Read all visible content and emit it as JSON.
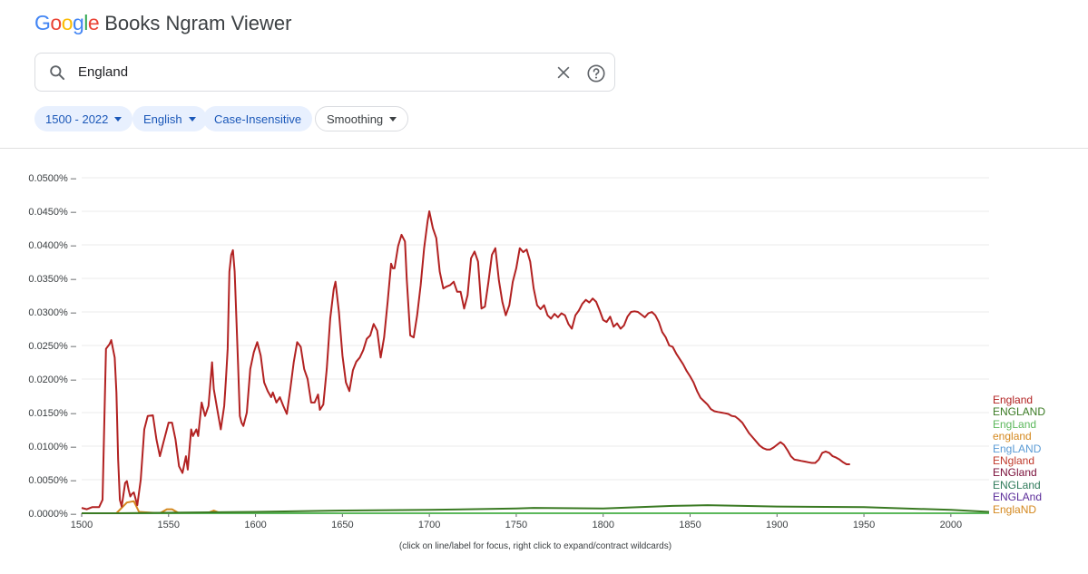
{
  "header": {
    "logo_text": "Google",
    "product": "Books Ngram Viewer",
    "logo_colors": [
      "#4285f4",
      "#ea4335",
      "#fbbc05",
      "#4285f4",
      "#34a853",
      "#ea4335"
    ]
  },
  "search": {
    "query": "England",
    "icons": {
      "search": "search-icon",
      "clear": "close-icon",
      "help": "help-icon"
    }
  },
  "filters": {
    "year_range": "1500 - 2022",
    "language": "English",
    "case": "Case-Insensitive",
    "smoothing": "Smoothing"
  },
  "footnote": "(click on line/label for focus, right click to expand/contract wildcards)",
  "chart_data": {
    "type": "line",
    "x_range": [
      1500,
      2022
    ],
    "y_range": [
      0,
      0.05
    ],
    "y_unit": "%",
    "x_ticks": [
      "1500",
      "1550",
      "1600",
      "1650",
      "1700",
      "1750",
      "1800",
      "1850",
      "1900",
      "1950",
      "2000"
    ],
    "y_ticks": [
      "0.0000%",
      "0.0050%",
      "0.0100%",
      "0.0150%",
      "0.0200%",
      "0.0250%",
      "0.0300%",
      "0.0350%",
      "0.0400%",
      "0.0450%",
      "0.0500%"
    ],
    "grid": "horizontal",
    "legend_position": "right",
    "series": [
      {
        "name": "England",
        "color": "#b22222",
        "points": [
          [
            1500,
            0.0008
          ],
          [
            1503,
            0.0006
          ],
          [
            1506,
            0.0009
          ],
          [
            1510,
            0.0009
          ],
          [
            1512,
            0.002
          ],
          [
            1514,
            0.0245
          ],
          [
            1516,
            0.0252
          ],
          [
            1517,
            0.0258
          ],
          [
            1519,
            0.0232
          ],
          [
            1520,
            0.018
          ],
          [
            1521,
            0.008
          ],
          [
            1522,
            0.002
          ],
          [
            1523,
            0.001
          ],
          [
            1525,
            0.0045
          ],
          [
            1526,
            0.0048
          ],
          [
            1527,
            0.0035
          ],
          [
            1528,
            0.0025
          ],
          [
            1529,
            0.0029
          ],
          [
            1530,
            0.0031
          ],
          [
            1532,
            0.0012
          ],
          [
            1534,
            0.005
          ],
          [
            1536,
            0.0125
          ],
          [
            1538,
            0.0145
          ],
          [
            1541,
            0.0146
          ],
          [
            1543,
            0.011
          ],
          [
            1545,
            0.0085
          ],
          [
            1547,
            0.0105
          ],
          [
            1550,
            0.0135
          ],
          [
            1552,
            0.0135
          ],
          [
            1554,
            0.011
          ],
          [
            1556,
            0.007
          ],
          [
            1558,
            0.006
          ],
          [
            1560,
            0.0085
          ],
          [
            1561,
            0.0065
          ],
          [
            1563,
            0.0125
          ],
          [
            1564,
            0.0115
          ],
          [
            1566,
            0.0125
          ],
          [
            1567,
            0.0115
          ],
          [
            1569,
            0.0165
          ],
          [
            1571,
            0.0145
          ],
          [
            1573,
            0.016
          ],
          [
            1575,
            0.0225
          ],
          [
            1576,
            0.0185
          ],
          [
            1578,
            0.0155
          ],
          [
            1580,
            0.0125
          ],
          [
            1582,
            0.016
          ],
          [
            1583,
            0.02
          ],
          [
            1584,
            0.0245
          ],
          [
            1585,
            0.036
          ],
          [
            1586,
            0.0385
          ],
          [
            1587,
            0.0392
          ],
          [
            1588,
            0.036
          ],
          [
            1589,
            0.029
          ],
          [
            1590,
            0.022
          ],
          [
            1591,
            0.0145
          ],
          [
            1592,
            0.0135
          ],
          [
            1593,
            0.013
          ],
          [
            1595,
            0.015
          ],
          [
            1597,
            0.0215
          ],
          [
            1599,
            0.024
          ],
          [
            1601,
            0.0255
          ],
          [
            1603,
            0.0235
          ],
          [
            1605,
            0.0195
          ],
          [
            1607,
            0.0182
          ],
          [
            1609,
            0.0173
          ],
          [
            1610,
            0.018
          ],
          [
            1612,
            0.0165
          ],
          [
            1614,
            0.0173
          ],
          [
            1616,
            0.016
          ],
          [
            1618,
            0.0148
          ],
          [
            1620,
            0.0185
          ],
          [
            1622,
            0.0225
          ],
          [
            1624,
            0.0255
          ],
          [
            1626,
            0.0248
          ],
          [
            1628,
            0.0215
          ],
          [
            1630,
            0.02
          ],
          [
            1632,
            0.0165
          ],
          [
            1634,
            0.0165
          ],
          [
            1636,
            0.0177
          ],
          [
            1637,
            0.0154
          ],
          [
            1639,
            0.0162
          ],
          [
            1641,
            0.0215
          ],
          [
            1643,
            0.029
          ],
          [
            1645,
            0.0334
          ],
          [
            1646,
            0.0345
          ],
          [
            1648,
            0.03
          ],
          [
            1650,
            0.0235
          ],
          [
            1652,
            0.0195
          ],
          [
            1654,
            0.0182
          ],
          [
            1656,
            0.0213
          ],
          [
            1658,
            0.0226
          ],
          [
            1660,
            0.0232
          ],
          [
            1662,
            0.0243
          ],
          [
            1664,
            0.026
          ],
          [
            1666,
            0.0265
          ],
          [
            1668,
            0.0282
          ],
          [
            1670,
            0.0272
          ],
          [
            1672,
            0.0232
          ],
          [
            1674,
            0.0262
          ],
          [
            1676,
            0.0315
          ],
          [
            1678,
            0.0372
          ],
          [
            1679,
            0.0365
          ],
          [
            1680,
            0.0365
          ],
          [
            1682,
            0.0398
          ],
          [
            1684,
            0.0415
          ],
          [
            1686,
            0.0405
          ],
          [
            1687,
            0.035
          ],
          [
            1689,
            0.0265
          ],
          [
            1691,
            0.0262
          ],
          [
            1693,
            0.0295
          ],
          [
            1695,
            0.034
          ],
          [
            1697,
            0.0395
          ],
          [
            1699,
            0.0435
          ],
          [
            1700,
            0.045
          ],
          [
            1702,
            0.0425
          ],
          [
            1704,
            0.041
          ],
          [
            1706,
            0.036
          ],
          [
            1708,
            0.0335
          ],
          [
            1710,
            0.0338
          ],
          [
            1712,
            0.034
          ],
          [
            1714,
            0.0345
          ],
          [
            1716,
            0.033
          ],
          [
            1718,
            0.033
          ],
          [
            1720,
            0.0305
          ],
          [
            1722,
            0.0325
          ],
          [
            1724,
            0.038
          ],
          [
            1726,
            0.039
          ],
          [
            1728,
            0.0375
          ],
          [
            1730,
            0.0305
          ],
          [
            1732,
            0.0308
          ],
          [
            1734,
            0.0345
          ],
          [
            1736,
            0.0385
          ],
          [
            1738,
            0.0395
          ],
          [
            1740,
            0.0347
          ],
          [
            1742,
            0.0315
          ],
          [
            1744,
            0.0295
          ],
          [
            1746,
            0.031
          ],
          [
            1748,
            0.0345
          ],
          [
            1750,
            0.0365
          ],
          [
            1752,
            0.0395
          ],
          [
            1754,
            0.0389
          ],
          [
            1756,
            0.0393
          ],
          [
            1758,
            0.0375
          ],
          [
            1760,
            0.0335
          ],
          [
            1762,
            0.031
          ],
          [
            1764,
            0.0304
          ],
          [
            1766,
            0.031
          ],
          [
            1768,
            0.0295
          ],
          [
            1770,
            0.029
          ],
          [
            1772,
            0.0297
          ],
          [
            1774,
            0.0292
          ],
          [
            1776,
            0.0298
          ],
          [
            1778,
            0.0295
          ],
          [
            1780,
            0.0282
          ],
          [
            1782,
            0.0275
          ],
          [
            1784,
            0.0295
          ],
          [
            1786,
            0.0302
          ],
          [
            1788,
            0.0312
          ],
          [
            1790,
            0.0318
          ],
          [
            1792,
            0.0314
          ],
          [
            1794,
            0.032
          ],
          [
            1796,
            0.0315
          ],
          [
            1798,
            0.0302
          ],
          [
            1800,
            0.0288
          ],
          [
            1802,
            0.0285
          ],
          [
            1804,
            0.0293
          ],
          [
            1806,
            0.0278
          ],
          [
            1808,
            0.0283
          ],
          [
            1810,
            0.0275
          ],
          [
            1812,
            0.028
          ],
          [
            1814,
            0.0293
          ],
          [
            1816,
            0.03
          ],
          [
            1818,
            0.0301
          ],
          [
            1820,
            0.03
          ],
          [
            1822,
            0.0296
          ],
          [
            1824,
            0.0292
          ],
          [
            1826,
            0.0298
          ],
          [
            1828,
            0.03
          ],
          [
            1830,
            0.0295
          ],
          [
            1832,
            0.0285
          ],
          [
            1834,
            0.027
          ],
          [
            1836,
            0.0262
          ],
          [
            1838,
            0.025
          ],
          [
            1840,
            0.0248
          ],
          [
            1842,
            0.0238
          ],
          [
            1844,
            0.023
          ],
          [
            1846,
            0.0222
          ],
          [
            1848,
            0.0212
          ],
          [
            1850,
            0.0204
          ],
          [
            1852,
            0.0195
          ],
          [
            1854,
            0.0182
          ],
          [
            1856,
            0.0172
          ],
          [
            1858,
            0.0167
          ],
          [
            1860,
            0.0162
          ],
          [
            1862,
            0.0155
          ],
          [
            1864,
            0.0152
          ],
          [
            1866,
            0.0151
          ],
          [
            1868,
            0.015
          ],
          [
            1870,
            0.0149
          ],
          [
            1872,
            0.0148
          ],
          [
            1874,
            0.0145
          ],
          [
            1876,
            0.0144
          ],
          [
            1878,
            0.014
          ],
          [
            1880,
            0.0135
          ],
          [
            1882,
            0.0127
          ],
          [
            1884,
            0.0119
          ],
          [
            1886,
            0.0113
          ],
          [
            1888,
            0.0107
          ],
          [
            1890,
            0.0101
          ],
          [
            1892,
            0.0097
          ],
          [
            1894,
            0.0095
          ],
          [
            1896,
            0.0095
          ],
          [
            1898,
            0.0098
          ],
          [
            1900,
            0.0102
          ],
          [
            1902,
            0.0106
          ],
          [
            1904,
            0.0102
          ],
          [
            1906,
            0.0094
          ],
          [
            1908,
            0.0085
          ],
          [
            1910,
            0.008
          ],
          [
            1912,
            0.0079
          ],
          [
            1914,
            0.0078
          ],
          [
            1916,
            0.0077
          ],
          [
            1918,
            0.0076
          ],
          [
            1920,
            0.0075
          ],
          [
            1922,
            0.0075
          ],
          [
            1924,
            0.008
          ],
          [
            1926,
            0.009
          ],
          [
            1928,
            0.0092
          ],
          [
            1930,
            0.009
          ],
          [
            1932,
            0.0085
          ],
          [
            1934,
            0.0083
          ],
          [
            1936,
            0.008
          ],
          [
            1938,
            0.0076
          ],
          [
            1940,
            0.0073
          ],
          [
            1942,
            0.0073
          ]
        ]
      },
      {
        "name": "ENGLAND",
        "color": "#3a7a23",
        "points": [
          [
            1500,
            0
          ],
          [
            1520,
            0
          ],
          [
            1600,
            0.0002
          ],
          [
            1650,
            0.0004
          ],
          [
            1700,
            0.0005
          ],
          [
            1750,
            0.0007
          ],
          [
            1760,
            0.0008
          ],
          [
            1800,
            0.0007
          ],
          [
            1840,
            0.0011
          ],
          [
            1860,
            0.0012
          ],
          [
            1900,
            0.001
          ],
          [
            1950,
            0.0009
          ],
          [
            2000,
            0.0005
          ],
          [
            2022,
            0.0002
          ]
        ]
      },
      {
        "name": "EngLand",
        "color": "#5cb85c",
        "points": [
          [
            1500,
            0
          ],
          [
            2022,
            0
          ]
        ]
      },
      {
        "name": "england",
        "color": "#d4881e",
        "points": [
          [
            1500,
            0
          ],
          [
            1520,
            0
          ],
          [
            1526,
            0.0016
          ],
          [
            1530,
            0.0018
          ],
          [
            1533,
            0.0002
          ],
          [
            1545,
            0
          ],
          [
            1549,
            0.0006
          ],
          [
            1552,
            0.0006
          ],
          [
            1556,
            0
          ],
          [
            1572,
            0
          ],
          [
            1576,
            0.0004
          ],
          [
            1580,
            0
          ],
          [
            2022,
            0
          ]
        ]
      },
      {
        "name": "EngLAND",
        "color": "#5b9bd5",
        "points": [
          [
            1500,
            0
          ],
          [
            2022,
            0
          ]
        ]
      },
      {
        "name": "ENgland",
        "color": "#c0392b",
        "points": [
          [
            1500,
            0
          ],
          [
            2022,
            0
          ]
        ]
      },
      {
        "name": "ENGland",
        "color": "#7a0f3a",
        "points": [
          [
            1500,
            0
          ],
          [
            2022,
            0
          ]
        ]
      },
      {
        "name": "ENGLand",
        "color": "#2f7a5a",
        "points": [
          [
            1500,
            0
          ],
          [
            2022,
            0
          ]
        ]
      },
      {
        "name": "ENGLAnd",
        "color": "#5b2c99",
        "points": [
          [
            1500,
            0
          ],
          [
            2022,
            0
          ]
        ]
      },
      {
        "name": "EnglaND",
        "color": "#d4881e",
        "points": [
          [
            1500,
            0
          ],
          [
            2022,
            0
          ]
        ]
      }
    ]
  }
}
